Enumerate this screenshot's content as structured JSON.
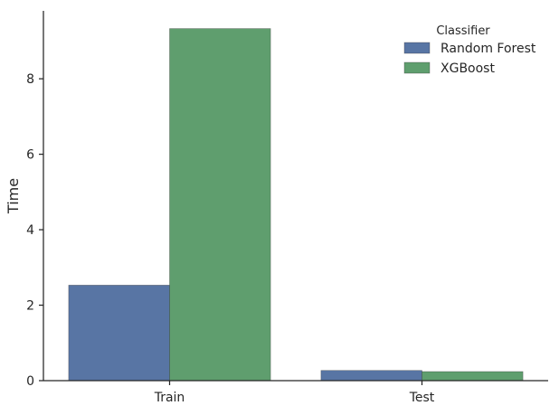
{
  "chart_data": {
    "type": "bar",
    "categories": [
      "Train",
      "Test"
    ],
    "series": [
      {
        "name": "Random Forest",
        "color": "#5875a4",
        "values": [
          2.53,
          0.27
        ]
      },
      {
        "name": "XGBoost",
        "color": "#5f9e6e",
        "values": [
          9.33,
          0.24
        ]
      }
    ],
    "title": "",
    "xlabel": "",
    "ylabel": "Time",
    "ylim": [
      0,
      9.8
    ],
    "yticks": [
      0,
      2,
      4,
      6,
      8
    ],
    "grid": false,
    "legend": {
      "title": "Classifier",
      "placement": "top-right"
    }
  }
}
